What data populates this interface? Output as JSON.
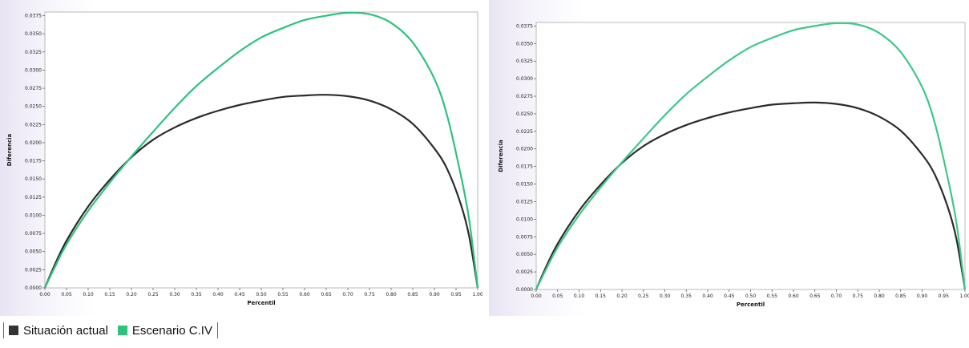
{
  "chart_data": [
    {
      "type": "line",
      "xlabel": "Percentil",
      "ylabel": "Diferencia",
      "xlim": [
        0,
        1
      ],
      "ylim": [
        0,
        0.038
      ],
      "xticks": [
        "0.00",
        "0.05",
        "0.10",
        "0.15",
        "0.20",
        "0.25",
        "0.30",
        "0.35",
        "0.40",
        "0.45",
        "0.50",
        "0.55",
        "0.60",
        "0.65",
        "0.70",
        "0.75",
        "0.80",
        "0.85",
        "0.90",
        "0.95",
        "1.00"
      ],
      "yticks": [
        "0.0000",
        "0.0025",
        "0.0050",
        "0.0075",
        "0.0100",
        "0.0125",
        "0.0150",
        "0.0175",
        "0.0200",
        "0.0225",
        "0.0250",
        "0.0275",
        "0.0300",
        "0.0325",
        "0.0350",
        "0.0375"
      ],
      "grid": false,
      "series": [
        {
          "name": "Situación actual",
          "color": "#2b2b2b",
          "x": [
            0,
            0.02,
            0.05,
            0.1,
            0.15,
            0.2,
            0.25,
            0.3,
            0.35,
            0.4,
            0.45,
            0.5,
            0.55,
            0.6,
            0.65,
            0.7,
            0.75,
            0.8,
            0.85,
            0.9,
            0.93,
            0.96,
            0.98,
            1.0
          ],
          "y": [
            0,
            0.0028,
            0.0065,
            0.0112,
            0.0149,
            0.018,
            0.0204,
            0.0221,
            0.0234,
            0.0244,
            0.0252,
            0.0258,
            0.0263,
            0.0265,
            0.0266,
            0.0264,
            0.0258,
            0.0246,
            0.0226,
            0.0192,
            0.0163,
            0.0117,
            0.0072,
            0.0
          ]
        },
        {
          "name": "Escenario C.IV",
          "color": "#2ec27e",
          "x": [
            0,
            0.02,
            0.05,
            0.1,
            0.15,
            0.2,
            0.25,
            0.3,
            0.35,
            0.4,
            0.45,
            0.5,
            0.55,
            0.6,
            0.65,
            0.7,
            0.75,
            0.8,
            0.85,
            0.9,
            0.93,
            0.96,
            0.98,
            1.0
          ],
          "y": [
            0,
            0.0025,
            0.006,
            0.0106,
            0.0145,
            0.0181,
            0.0215,
            0.0248,
            0.0278,
            0.0303,
            0.0326,
            0.0345,
            0.0358,
            0.0369,
            0.0375,
            0.0379,
            0.0377,
            0.0365,
            0.0338,
            0.0288,
            0.0236,
            0.0158,
            0.0095,
            0.0
          ]
        }
      ]
    },
    {
      "type": "line",
      "xlabel": "Percentil",
      "ylabel": "Diferencia",
      "xlim": [
        0,
        1
      ],
      "ylim": [
        0,
        0.038
      ],
      "xticks": [
        "0.00",
        "0.05",
        "0.10",
        "0.15",
        "0.20",
        "0.25",
        "0.30",
        "0.35",
        "0.40",
        "0.45",
        "0.50",
        "0.55",
        "0.60",
        "0.65",
        "0.70",
        "0.75",
        "0.80",
        "0.85",
        "0.90",
        "0.95",
        "1.00"
      ],
      "yticks": [
        "0.0000",
        "0.0025",
        "0.0050",
        "0.0075",
        "0.0100",
        "0.0125",
        "0.0150",
        "0.0175",
        "0.0200",
        "0.0225",
        "0.0250",
        "0.0275",
        "0.0300",
        "0.0325",
        "0.0350",
        "0.0375"
      ],
      "grid": false,
      "series": [
        {
          "name": "Situación actual",
          "color": "#2b2b2b",
          "x": [
            0,
            0.02,
            0.05,
            0.1,
            0.15,
            0.2,
            0.25,
            0.3,
            0.35,
            0.4,
            0.45,
            0.5,
            0.55,
            0.6,
            0.65,
            0.7,
            0.75,
            0.8,
            0.85,
            0.9,
            0.93,
            0.96,
            0.98,
            1.0
          ],
          "y": [
            0,
            0.0028,
            0.0065,
            0.0112,
            0.0149,
            0.018,
            0.0204,
            0.0221,
            0.0234,
            0.0244,
            0.0252,
            0.0258,
            0.0263,
            0.0265,
            0.0266,
            0.0264,
            0.0258,
            0.0246,
            0.0226,
            0.0192,
            0.0163,
            0.0117,
            0.0072,
            0.0
          ]
        },
        {
          "name": "Escenario C.IV",
          "color": "#3cc98a",
          "x": [
            0,
            0.02,
            0.05,
            0.1,
            0.15,
            0.2,
            0.25,
            0.3,
            0.35,
            0.4,
            0.45,
            0.5,
            0.55,
            0.6,
            0.65,
            0.7,
            0.75,
            0.8,
            0.85,
            0.9,
            0.93,
            0.96,
            0.98,
            1.0
          ],
          "y": [
            0,
            0.0025,
            0.006,
            0.0106,
            0.0145,
            0.0181,
            0.0215,
            0.0248,
            0.0278,
            0.0303,
            0.0326,
            0.0345,
            0.0358,
            0.0369,
            0.0375,
            0.0379,
            0.0377,
            0.0365,
            0.0338,
            0.0288,
            0.0236,
            0.0158,
            0.0095,
            0.0
          ]
        }
      ]
    }
  ],
  "legend": {
    "items": [
      {
        "label": "Situación actual",
        "color": "#333333"
      },
      {
        "label": "Escenario C.IV",
        "color": "#2ec27e"
      }
    ]
  }
}
